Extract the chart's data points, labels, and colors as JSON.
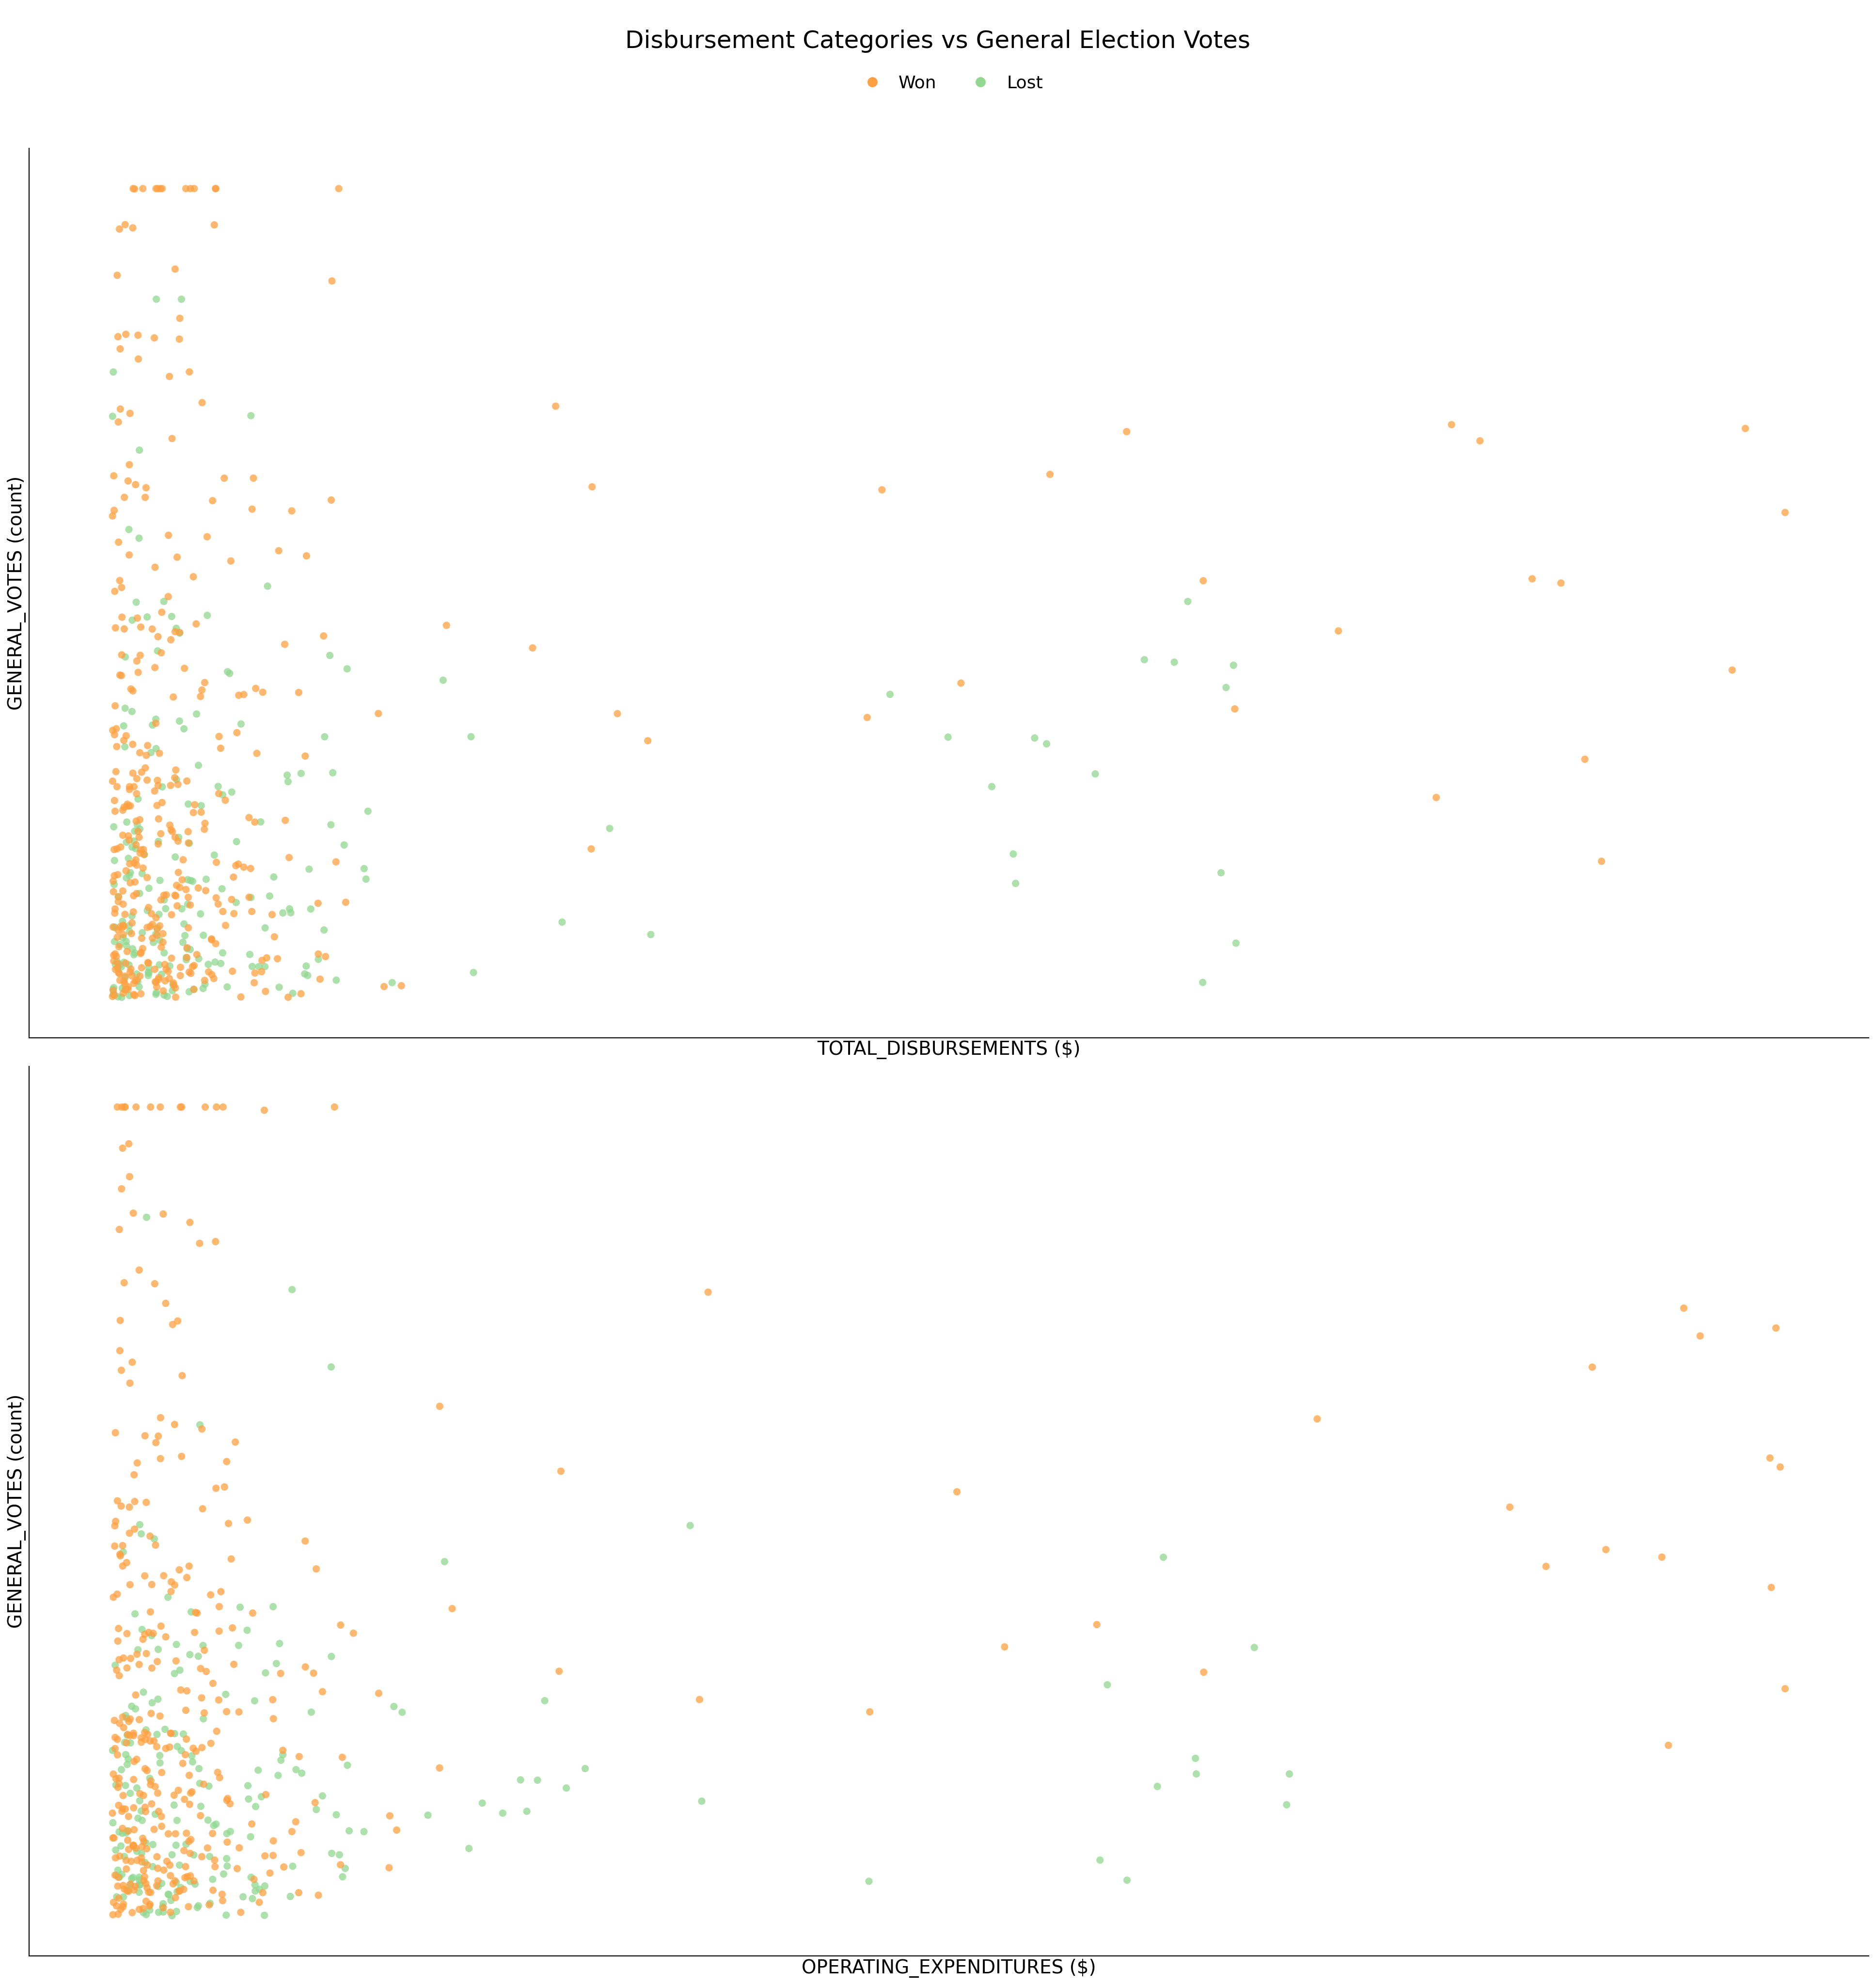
{
  "title": "Disbursement Categories vs General Election Votes",
  "legend_labels": [
    "Won",
    "Lost"
  ],
  "plots": [
    {
      "xlabel": "TOTAL_DISBURSEMENTS ($)",
      "ylabel": "GENERAL_VOTES (count)"
    },
    {
      "xlabel": "OPERATING_EXPENDITURES ($)",
      "ylabel": "GENERAL_VOTES (count)"
    }
  ],
  "won_color": "#FFA040",
  "lost_color": "#90D890",
  "background_color": "#ffffff",
  "title_fontsize": 36,
  "label_fontsize": 28,
  "legend_fontsize": 26,
  "marker_size": 120,
  "alpha": 0.75,
  "seed": 42
}
